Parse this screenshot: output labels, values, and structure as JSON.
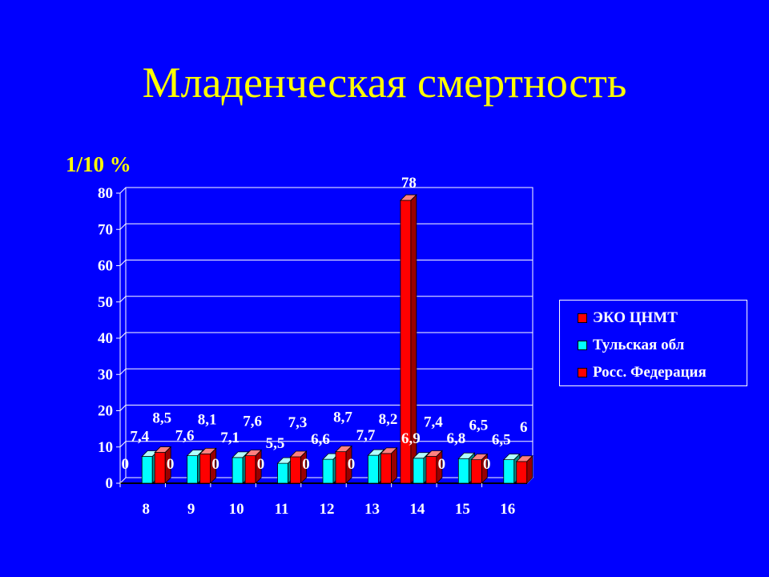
{
  "title": "Младенческая смертность",
  "unit_label": "1/10  %",
  "colors": {
    "background": "#0000ff",
    "title": "#ffff00",
    "eko": "#ff0000",
    "tula": "#00ffff",
    "russia": "#ff0000"
  },
  "chart_data": {
    "type": "bar",
    "title": "Младенческая смертность",
    "ylabel": "1/10  %",
    "xlabel": "",
    "ylim": [
      0,
      80
    ],
    "yticks": [
      "0",
      "10",
      "20",
      "30",
      "40",
      "50",
      "60",
      "70",
      "80"
    ],
    "categories": [
      "8",
      "9",
      "10",
      "11",
      "12",
      "13",
      "14",
      "15",
      "16"
    ],
    "grid": true,
    "legend_position": "right",
    "series": [
      {
        "name": "ЭКО ЦНМТ",
        "values": [
          0,
          0,
          0,
          0,
          0,
          0,
          78,
          0,
          0
        ],
        "labels": [
          "0",
          "0",
          "0",
          "0",
          "0",
          "0",
          "78",
          "0",
          "0"
        ]
      },
      {
        "name": "Тульская обл",
        "values": [
          7.4,
          7.6,
          7.1,
          5.5,
          6.6,
          7.7,
          6.9,
          6.8,
          6.5
        ],
        "labels": [
          "7,4",
          "7,6",
          "7,1",
          "5,5",
          "6,6",
          "7,7",
          "6,9",
          "6,8",
          "6,5"
        ]
      },
      {
        "name": "Росс. Федерация",
        "values": [
          8.5,
          8.1,
          7.6,
          7.3,
          8.7,
          8.2,
          7.4,
          6.5,
          6
        ],
        "labels": [
          "8,5",
          "8,1",
          "7,6",
          "7,3",
          "8,7",
          "8,2",
          "7,4",
          "6,5",
          "6"
        ]
      }
    ]
  }
}
